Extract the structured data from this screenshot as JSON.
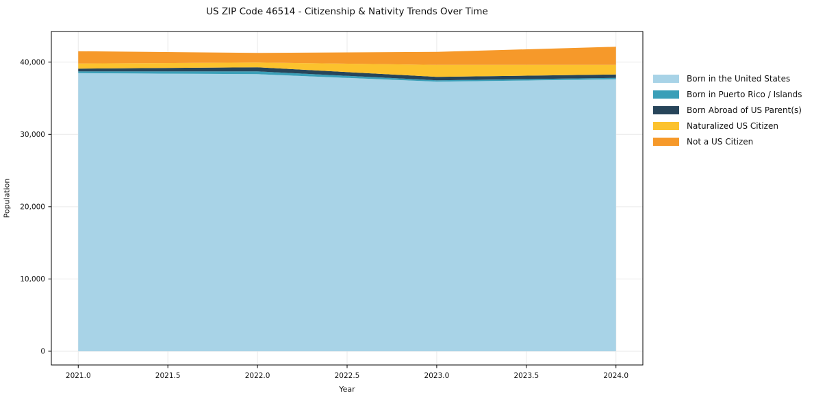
{
  "title": "US ZIP Code 46514 - Citizenship & Nativity Trends Over Time",
  "colors": {
    "background": "#ffffff",
    "spine": "#000000",
    "grid": "#e9e9e9",
    "text": "#111111"
  },
  "chart_data": {
    "type": "area",
    "stacked": true,
    "title": "US ZIP Code 46514 - Citizenship & Nativity Trends Over Time",
    "xlabel": "Year",
    "ylabel": "Population",
    "x": [
      2021,
      2022,
      2023,
      2024
    ],
    "series": [
      {
        "name": "Born in the United States",
        "color": "#a8d3e7",
        "values": [
          38480,
          38340,
          37300,
          37630
        ]
      },
      {
        "name": "Born in Puerto Rico / Islands",
        "color": "#3a9fb8",
        "values": [
          240,
          380,
          190,
          190
        ]
      },
      {
        "name": "Born Abroad of US Parent(s)",
        "color": "#27455a",
        "values": [
          380,
          570,
          470,
          470
        ]
      },
      {
        "name": "Naturalized US Citizen",
        "color": "#fcc22d",
        "values": [
          710,
          660,
          1660,
          1330
        ]
      },
      {
        "name": "Not a US Citizen",
        "color": "#f6992a",
        "values": [
          1700,
          1330,
          1800,
          2510
        ]
      }
    ],
    "totals": [
      41510,
      41280,
      41420,
      42130
    ],
    "xticks": [
      2021.0,
      2021.5,
      2022.0,
      2022.5,
      2023.0,
      2023.5,
      2024.0
    ],
    "xtick_labels": [
      "2021.0",
      "2021.5",
      "2022.0",
      "2022.5",
      "2023.0",
      "2023.5",
      "2024.0"
    ],
    "yticks": [
      0,
      10000,
      20000,
      30000,
      40000
    ],
    "ytick_labels": [
      "0",
      "10,000",
      "20,000",
      "30,000",
      "40,000"
    ],
    "xlim": [
      2020.85,
      2024.15
    ],
    "ylim": [
      -1900,
      44240
    ],
    "grid": true,
    "legend_position": "right-outside",
    "baseline": 0
  }
}
